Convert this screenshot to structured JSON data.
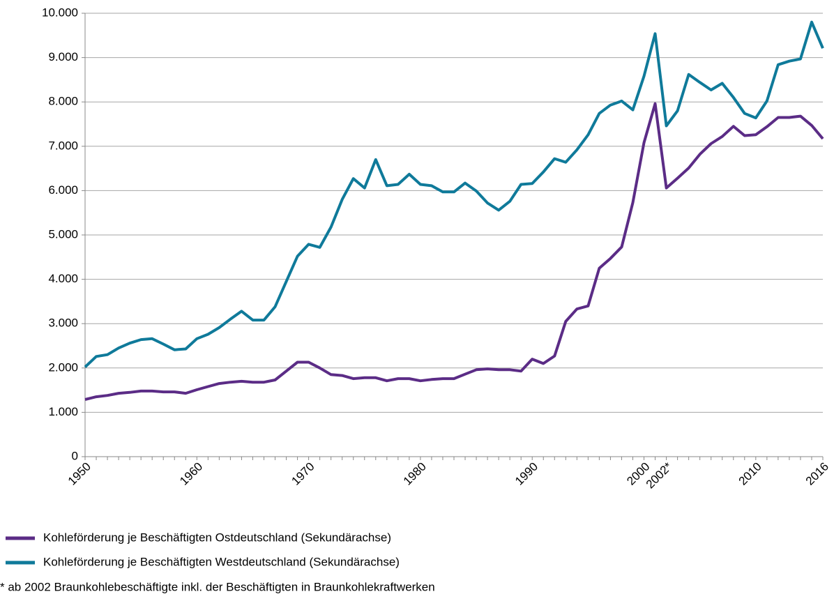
{
  "chart_data": {
    "type": "line",
    "categories": [
      "1950",
      null,
      null,
      null,
      null,
      null,
      null,
      null,
      null,
      null,
      "1960",
      null,
      null,
      null,
      null,
      null,
      null,
      null,
      null,
      null,
      "1970",
      null,
      null,
      null,
      null,
      null,
      null,
      null,
      null,
      null,
      "1980",
      null,
      null,
      null,
      null,
      null,
      null,
      null,
      null,
      null,
      "1990",
      null,
      null,
      null,
      null,
      null,
      null,
      null,
      null,
      null,
      "2000",
      null,
      "2002*",
      null,
      null,
      null,
      null,
      null,
      null,
      null,
      "2010",
      null,
      null,
      null,
      null,
      null,
      "2016"
    ],
    "series": [
      {
        "name": "Kohleförderung je Beschäftigten Ostdeutschland (Sekundärachse)",
        "color": "#5b2c86",
        "values": [
          1290,
          1350,
          1380,
          1430,
          1450,
          1480,
          1480,
          1460,
          1460,
          1430,
          1510,
          1580,
          1650,
          1680,
          1700,
          1680,
          1680,
          1730,
          1930,
          2130,
          2130,
          2000,
          1850,
          1830,
          1760,
          1780,
          1780,
          1710,
          1760,
          1760,
          1710,
          1740,
          1760,
          1760,
          1860,
          1960,
          1980,
          1960,
          1960,
          1930,
          2200,
          2100,
          2270,
          3050,
          3330,
          3400,
          4250,
          4470,
          4730,
          5730,
          7080,
          7960,
          6060,
          6280,
          6510,
          6820,
          7060,
          7220,
          7450,
          7240,
          7260,
          7440,
          7650,
          7650,
          7680,
          7470,
          7170
        ]
      },
      {
        "name": "Kohleförderung je Beschäftigten Westdeutschland (Sekundärachse)",
        "color": "#0f7a9a",
        "values": [
          2020,
          2260,
          2300,
          2450,
          2560,
          2640,
          2660,
          2540,
          2410,
          2430,
          2660,
          2760,
          2910,
          3100,
          3280,
          3080,
          3080,
          3380,
          3950,
          4520,
          4790,
          4720,
          5180,
          5800,
          6270,
          6060,
          6700,
          6110,
          6140,
          6370,
          6140,
          6110,
          5970,
          5970,
          6170,
          5990,
          5720,
          5560,
          5760,
          6140,
          6160,
          6420,
          6720,
          6640,
          6920,
          7260,
          7740,
          7930,
          8020,
          7820,
          8580,
          9540,
          7460,
          7800,
          8620,
          8440,
          8270,
          8420,
          8100,
          7740,
          7640,
          8020,
          8840,
          8920,
          8970,
          9800,
          9210
        ]
      }
    ],
    "ylim": [
      0,
      10000
    ],
    "yticks": [
      0,
      {
        "value": 1000,
        "label": "1.000"
      },
      {
        "value": 2000,
        "label": "2.000"
      },
      {
        "value": 3000,
        "label": "3.000"
      },
      {
        "value": 4000,
        "label": "4.000"
      },
      {
        "value": 5000,
        "label": "5.000"
      },
      {
        "value": 6000,
        "label": "6.000"
      },
      {
        "value": 7000,
        "label": "7.000"
      },
      {
        "value": 8000,
        "label": "8.000"
      },
      {
        "value": 9000,
        "label": "9.000"
      },
      {
        "value": 10000,
        "label": "10.000"
      }
    ],
    "grid": true,
    "footnote": "* ab 2002 Braunkohlebeschäftigte inkl. der Beschäftigten in Braunkohlekraftwerken"
  }
}
